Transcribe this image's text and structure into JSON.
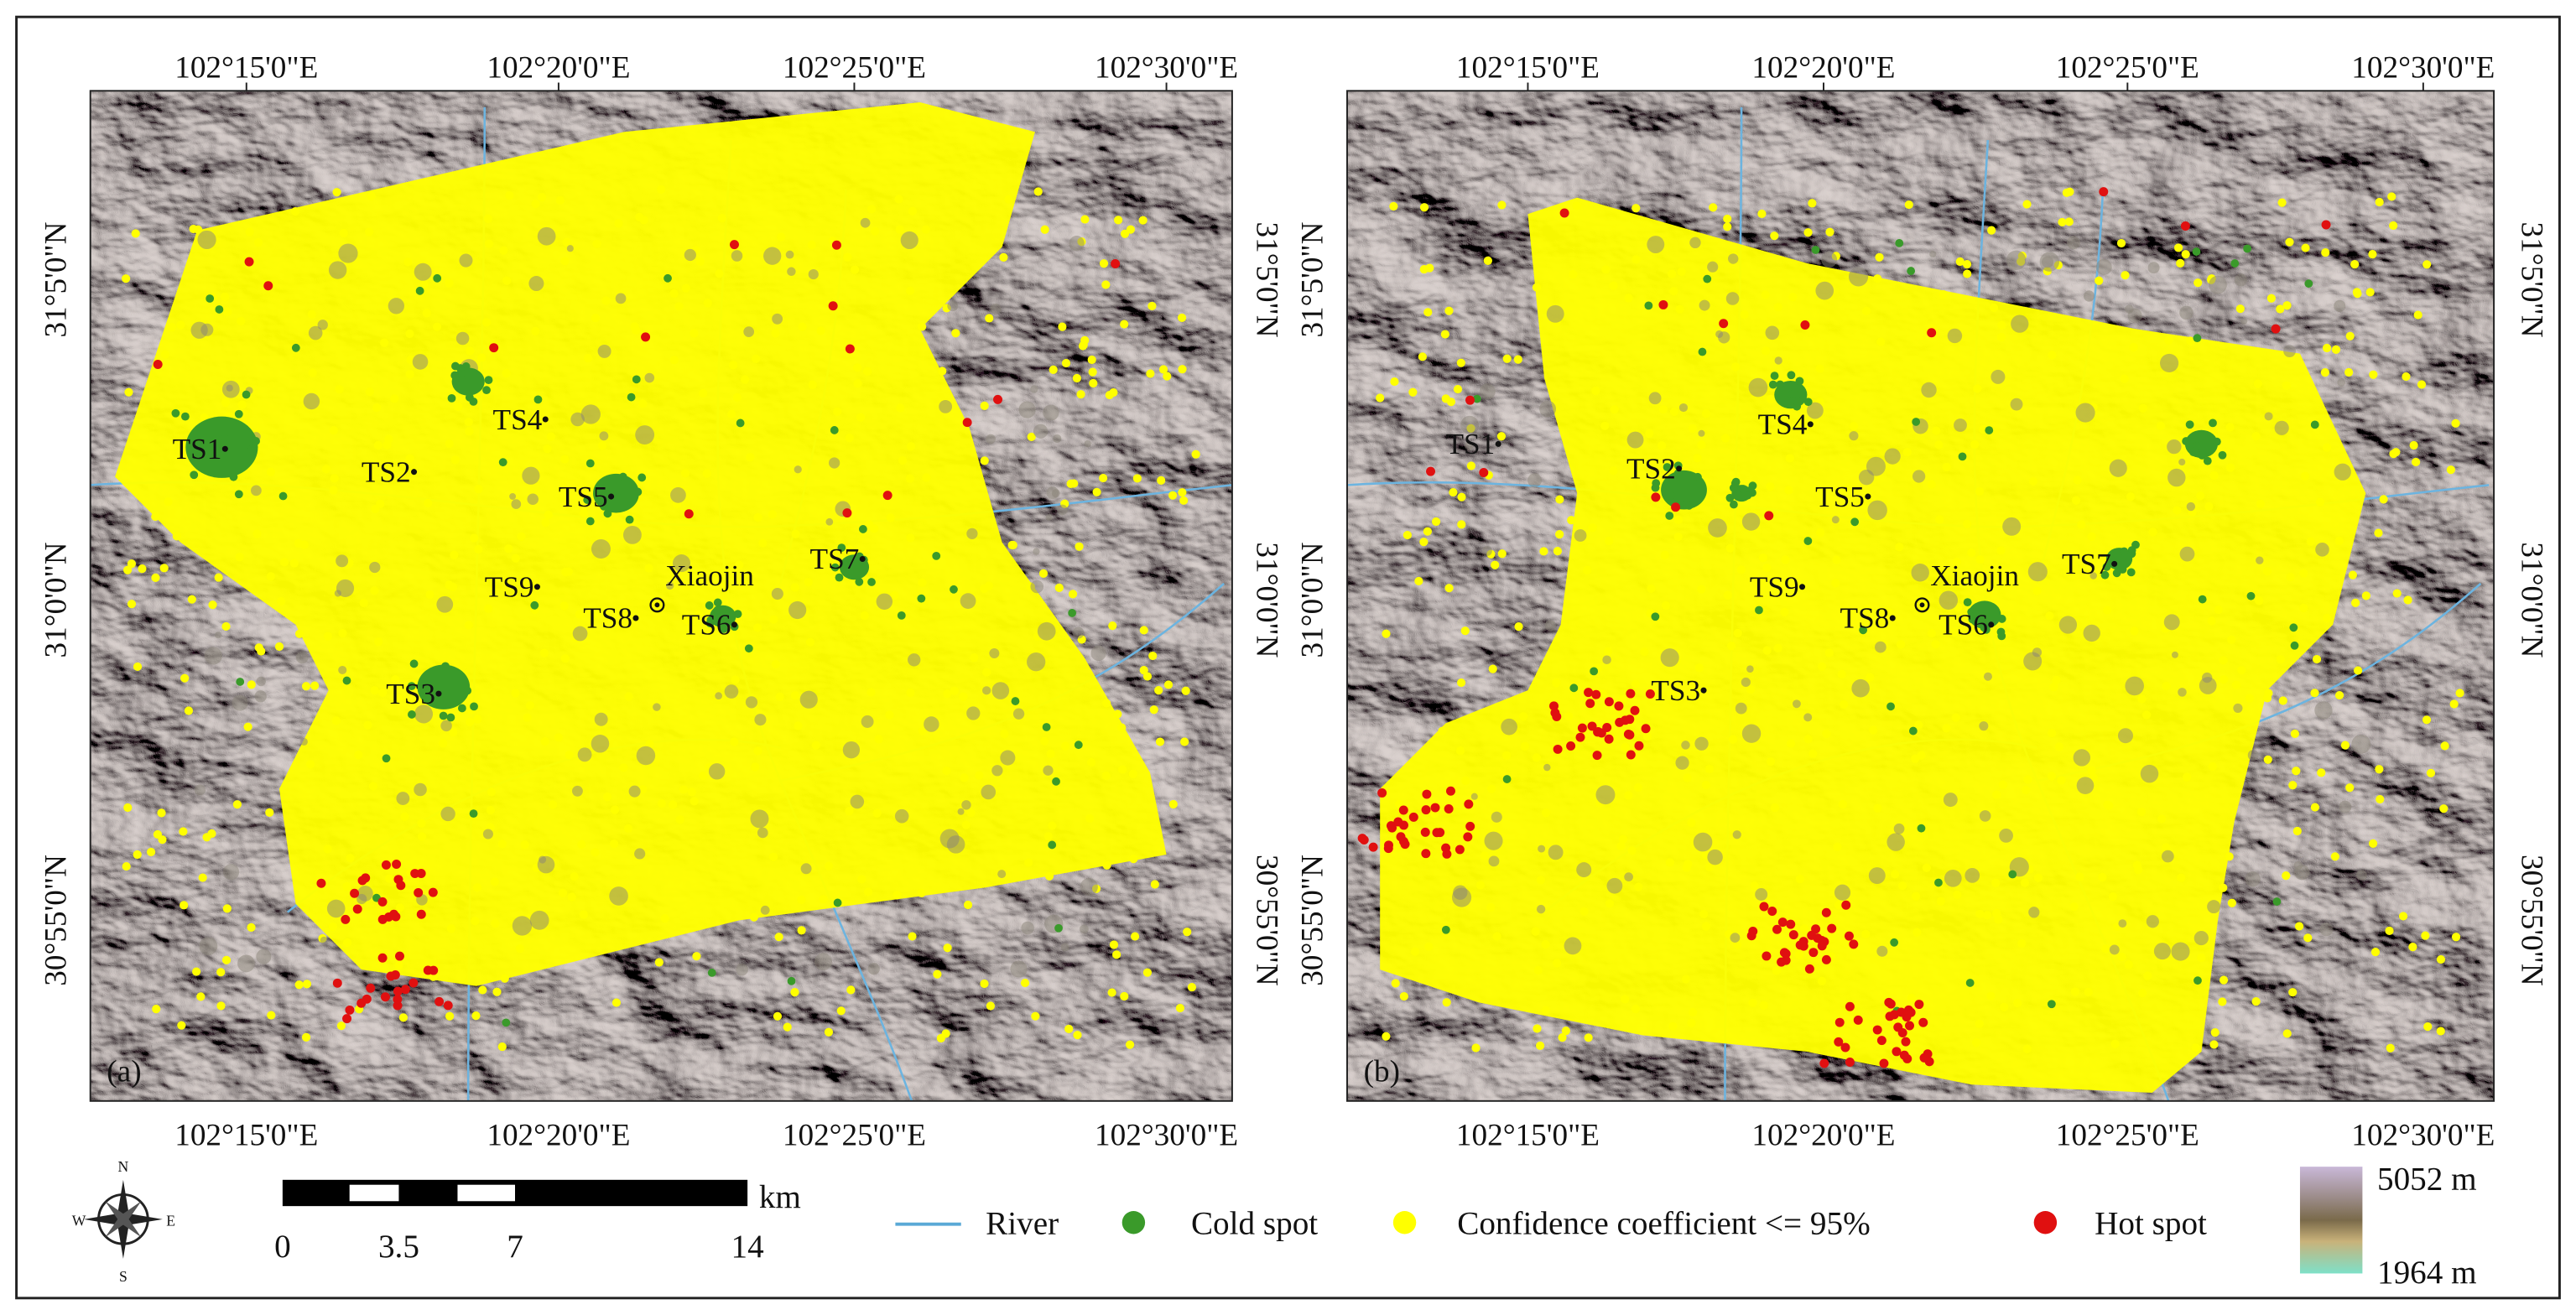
{
  "map": {
    "x_ticks": [
      "102°15'0\"E",
      "102°20'0\"E",
      "102°25'0\"E",
      "102°30'0\"E"
    ],
    "y_ticks": [
      "31°5'0\"N",
      "31°0'0\"N",
      "30°55'0\"N"
    ],
    "panels": [
      {
        "label": "(a)",
        "sites": [
          "TS1",
          "TS2",
          "TS3",
          "TS4",
          "TS5",
          "TS6",
          "TS7",
          "TS8",
          "TS9",
          "Xiaojin"
        ]
      },
      {
        "label": "(b)",
        "sites": [
          "TS1",
          "TS2",
          "TS3",
          "TS4",
          "TS5",
          "TS6",
          "TS7",
          "TS8",
          "TS9",
          "Xiaojin"
        ]
      }
    ],
    "compass": [
      "N",
      "S",
      "W",
      "E"
    ],
    "scale_bar": {
      "unit": "km",
      "ticks": [
        0,
        3.5,
        7,
        14
      ]
    },
    "legend": [
      "River",
      "Cold spot",
      "Confidence coefficient <= 95%",
      "Hot spot"
    ],
    "elevation": {
      "max": "5052 m",
      "min": "1964 m"
    }
  }
}
